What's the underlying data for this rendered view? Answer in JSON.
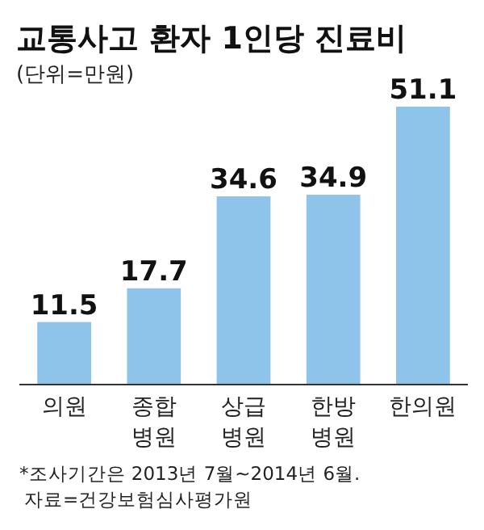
{
  "chart_data": {
    "type": "bar",
    "title": "교통사고 환자 1인당 진료비",
    "subtitle": "(단위=만원)",
    "categories": [
      "의원",
      "종합병원",
      "상급병원",
      "한방병원",
      "한의원"
    ],
    "values": [
      11.5,
      17.7,
      34.6,
      34.9,
      51.1
    ],
    "color": "#8ec3ea",
    "data_labels": true,
    "annotations": [
      "*조사기간은 2013년 7월~2014년 6월.",
      "자료=건강보험심사평가원"
    ]
  }
}
